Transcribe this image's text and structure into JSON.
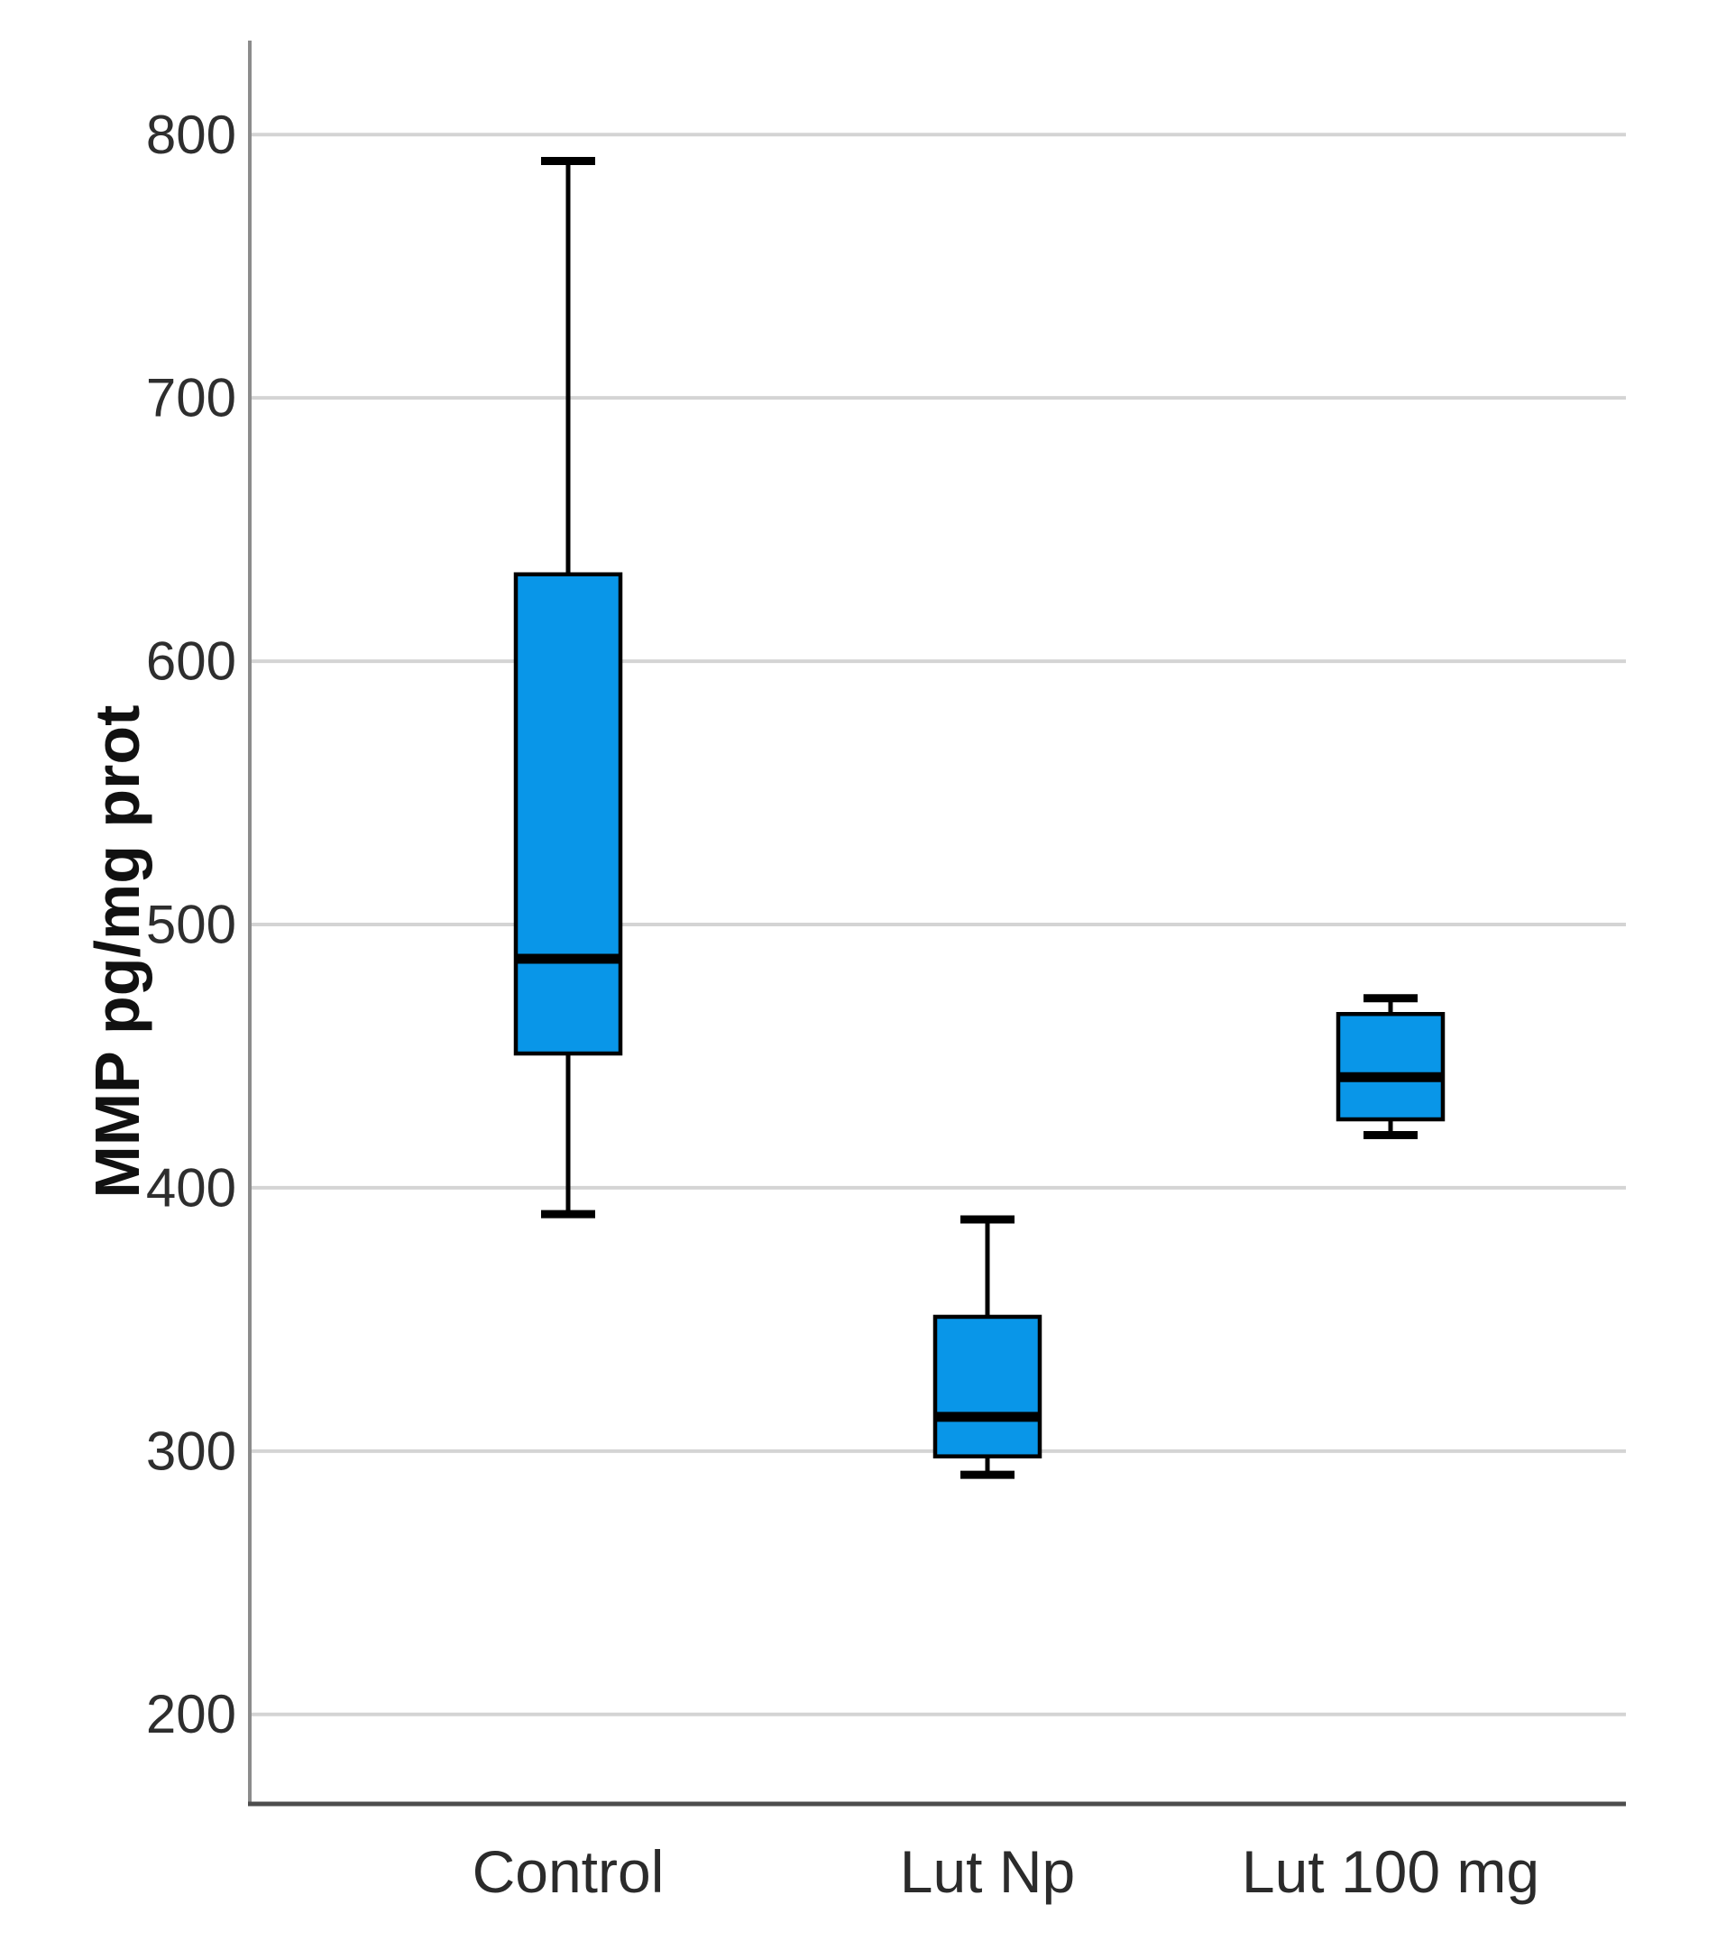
{
  "chart_data": {
    "type": "box",
    "title": "",
    "xlabel": "",
    "ylabel": "MMP pg/mg prot",
    "grid": true,
    "legend": "none",
    "ylim": [
      166,
      834
    ],
    "yticks": [
      800,
      700,
      600,
      500,
      400,
      300,
      200
    ],
    "categories": [
      "Control",
      "Lut Np",
      "Lut 100 mg"
    ],
    "series": [
      {
        "label": "Control",
        "min": 390,
        "q1": 451,
        "median": 487,
        "q3": 633,
        "max": 790
      },
      {
        "label": "Lut Np",
        "min": 291,
        "q1": 298,
        "median": 313,
        "q3": 351,
        "max": 388
      },
      {
        "label": "Lut 100 mg",
        "min": 420,
        "q1": 426,
        "median": 442,
        "q3": 466,
        "max": 472
      }
    ],
    "colors": {
      "box_fill": "#0996E8",
      "box_border": "#000000",
      "median_line": "#000000",
      "whisker": "#000000",
      "gridline": "#d4d4d4",
      "y_axis_line": "#8c8c8c",
      "baseline": "#4d4d4d",
      "text": "#2e2e2e",
      "background": "#ffffff"
    }
  }
}
